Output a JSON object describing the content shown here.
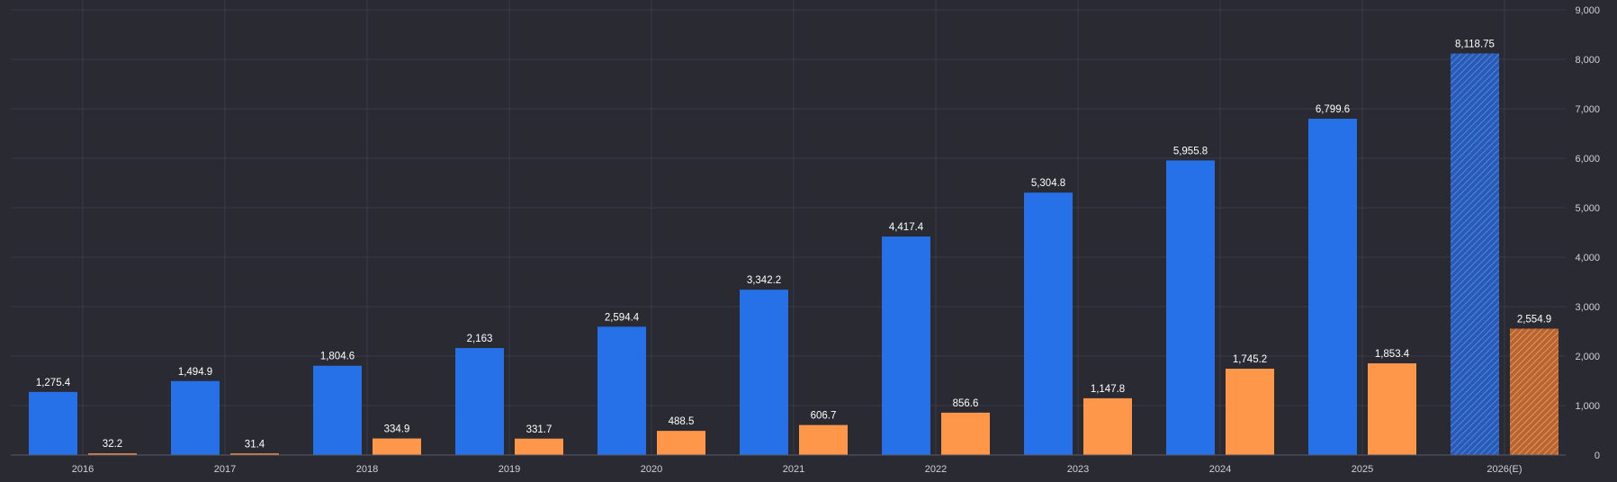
{
  "chart_data": {
    "type": "bar",
    "categories": [
      "2016",
      "2017",
      "2018",
      "2019",
      "2020",
      "2021",
      "2022",
      "2023",
      "2024",
      "2025",
      "2026(E)"
    ],
    "series": [
      {
        "values": [
          1275.4,
          1494.9,
          1804.6,
          2163,
          2594.4,
          3342.2,
          4417.4,
          5304.8,
          5955.8,
          6799.6,
          8118.75
        ],
        "labels": [
          "1,275.4",
          "1,494.9",
          "1,804.6",
          "2,163",
          "2,594.4",
          "3,342.2",
          "4,417.4",
          "5,304.8",
          "5,955.8",
          "6,799.6",
          "8,118.75"
        ],
        "color": "#2771e8"
      },
      {
        "values": [
          32.2,
          31.4,
          334.9,
          331.7,
          488.5,
          606.7,
          856.6,
          1147.8,
          1745.2,
          1853.4,
          2554.9
        ],
        "labels": [
          "32.2",
          "31.4",
          "334.9",
          "331.7",
          "488.5",
          "606.7",
          "856.6",
          "1,147.8",
          "1,745.2",
          "1,853.4",
          "2,554.9"
        ],
        "color": "#ff974a"
      }
    ],
    "estimated_category": "2026(E)",
    "ylim": [
      0,
      9000
    ],
    "yticks": [
      0,
      1000,
      2000,
      3000,
      4000,
      5000,
      6000,
      7000,
      8000,
      9000
    ],
    "ytick_labels": [
      "0",
      "1,000",
      "2,000",
      "3,000",
      "4,000",
      "5,000",
      "6,000",
      "7,000",
      "8,000",
      "9,000"
    ],
    "y_axis_side": "right",
    "grid": true,
    "legend": "none"
  }
}
